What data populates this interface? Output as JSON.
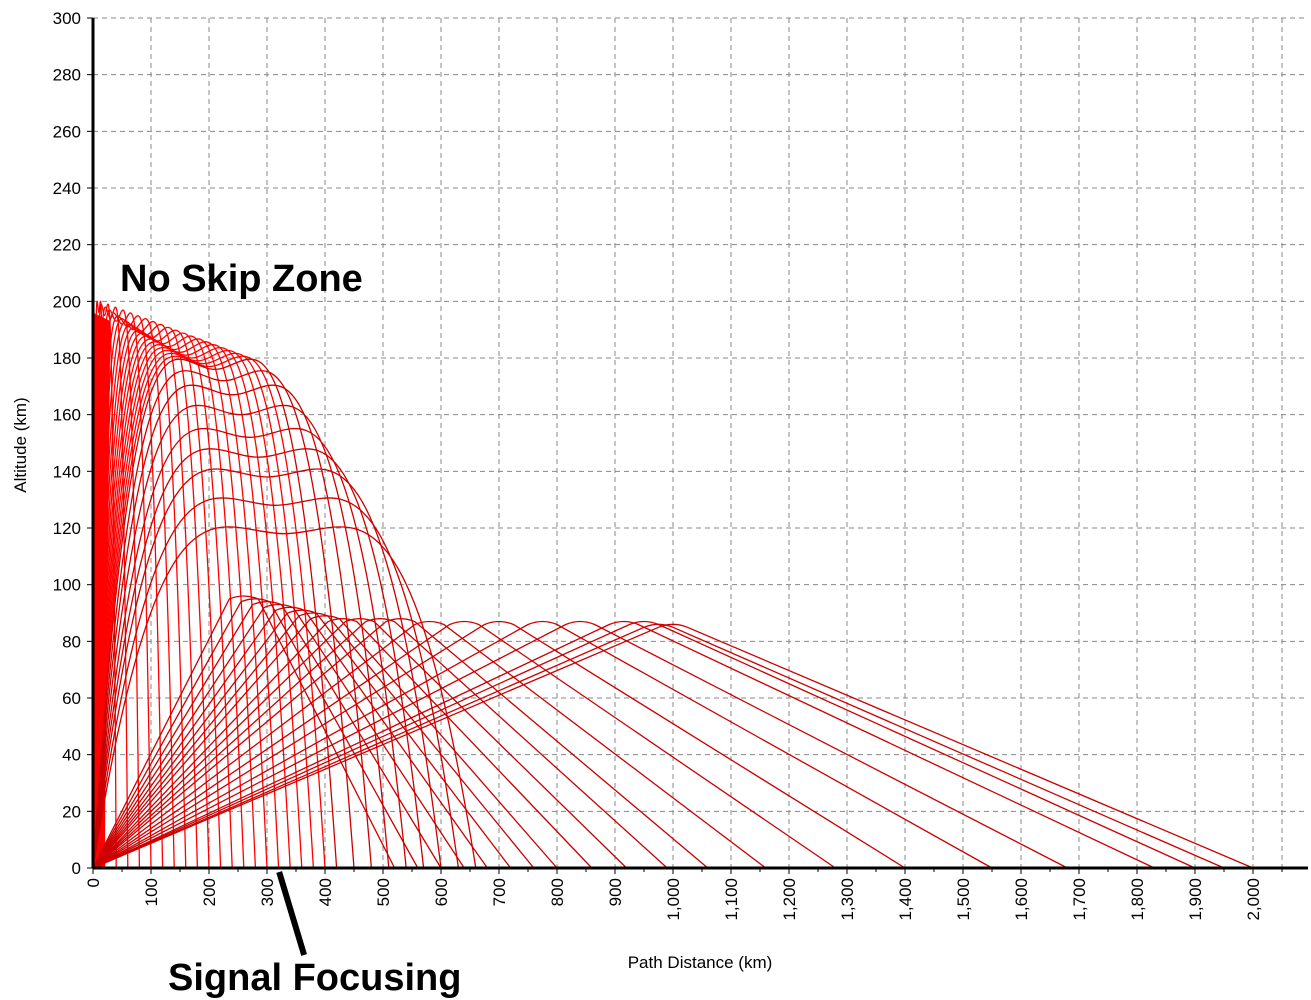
{
  "chart_data": {
    "type": "line",
    "title": "",
    "xlabel": "Path Distance (km)",
    "ylabel": "Altitude (km)",
    "xlim": [
      0,
      2100
    ],
    "ylim": [
      0,
      300
    ],
    "x_ticks": [
      0,
      100,
      200,
      300,
      400,
      500,
      600,
      700,
      800,
      900,
      1000,
      1100,
      1200,
      1300,
      1400,
      1500,
      1600,
      1700,
      1800,
      1900,
      2000
    ],
    "x_tick_labels": [
      "0",
      "100",
      "200",
      "300",
      "400",
      "500",
      "600",
      "700",
      "800",
      "900",
      "1,000",
      "1,100",
      "1,200",
      "1,300",
      "1,400",
      "1,500",
      "1,600",
      "1,700",
      "1,800",
      "1,900",
      "2,000"
    ],
    "y_ticks": [
      0,
      20,
      40,
      60,
      80,
      100,
      120,
      140,
      160,
      180,
      200,
      220,
      240,
      260,
      280,
      300
    ],
    "y_tick_labels": [
      "0",
      "20",
      "40",
      "60",
      "80",
      "100",
      "120",
      "140",
      "160",
      "180",
      "200",
      "220",
      "240",
      "260",
      "280",
      "300"
    ],
    "grid": true,
    "legend": "none",
    "colors": {
      "ray": "#cc0000",
      "dense_ray": "#ff0000",
      "grid": "#888888",
      "axis": "#000000"
    },
    "annotations": [
      {
        "text": "No Skip Zone",
        "x": 30,
        "y": 207
      },
      {
        "text": "Signal Focusing",
        "x": 340,
        "y": -33,
        "arrow_from": [
          365,
          -13
        ],
        "arrow_to": [
          330,
          0
        ]
      }
    ],
    "series_groups": [
      {
        "kind": "near-vertical rays reflecting from upper layer",
        "ground_ranges": [
          20,
          40,
          60,
          80,
          100,
          120,
          140,
          160,
          180,
          200,
          220,
          240,
          260,
          280,
          300,
          320,
          340,
          360,
          380,
          400
        ],
        "apex_altitudes": [
          196,
          195,
          194,
          193,
          192,
          191,
          190,
          189,
          188,
          187,
          186,
          185,
          184,
          183,
          182,
          181,
          180,
          179,
          178,
          177
        ]
      },
      {
        "kind": "rays refracted in upper layer",
        "ground_ranges": [
          420,
          450,
          480,
          510,
          540,
          570,
          600,
          630,
          660
        ],
        "apex_altitudes": [
          176,
          172,
          167,
          160,
          152,
          145,
          138,
          128,
          118
        ]
      },
      {
        "kind": "low-angle rays reflecting from lower layer",
        "ground_ranges": [
          520,
          560,
          600,
          640,
          680,
          720,
          760,
          800,
          860,
          920,
          990,
          1060,
          1160,
          1280,
          1400,
          1550,
          1680,
          1830,
          1900,
          1950,
          2000
        ],
        "apex_altitudes": [
          96,
          95,
          94,
          93,
          92,
          91,
          90,
          89,
          88,
          88,
          88,
          88,
          87,
          87,
          87,
          87,
          87,
          87,
          87,
          86,
          86
        ]
      }
    ]
  }
}
